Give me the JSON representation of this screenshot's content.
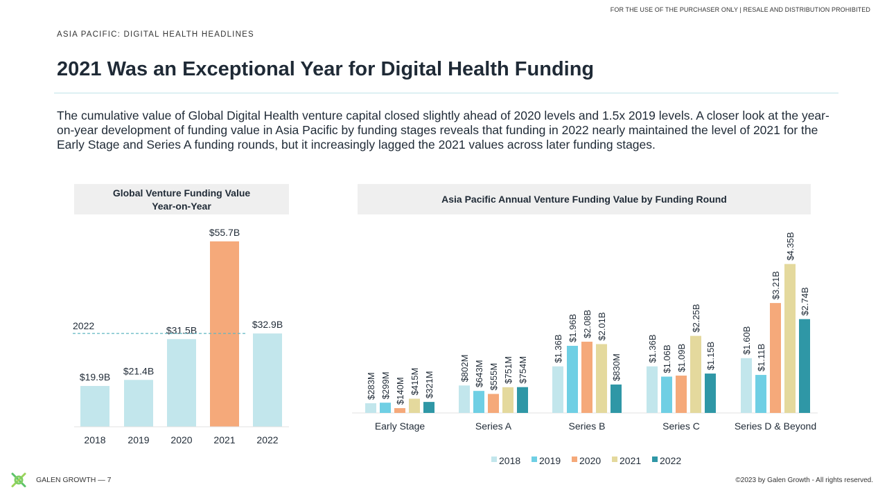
{
  "header": {
    "disclaimer": "FOR THE USE OF THE PURCHASER ONLY | RESALE AND DISTRIBUTION PROHIBITED",
    "kicker": "ASIA PACIFIC: DIGITAL HEALTH HEADLINES",
    "title": "2021 Was an Exceptional Year for Digital Health Funding"
  },
  "intro": "The cumulative value of Global Digital Health venture capital closed slightly ahead of 2020 levels and 1.5x 2019 levels. A closer look at the year-on-year development of funding value in Asia Pacific by funding stages reveals that funding in 2022 nearly maintained the level of 2021 for the Early Stage and Series A funding rounds, but it increasingly lagged the 2021 values across later funding stages.",
  "footer": {
    "brand": "GALEN GROWTH  —  7",
    "copyright": "©2023 by Galen Growth  - All rights reserved."
  },
  "chart_data": [
    {
      "type": "bar",
      "title_line1": "Global Venture Funding Value",
      "title_line2": "Year-on-Year",
      "categories": [
        "2018",
        "2019",
        "2020",
        "2021",
        "2022"
      ],
      "values": [
        19.9,
        21.4,
        31.5,
        55.7,
        32.9
      ],
      "data_labels": [
        "$19.9B",
        "$21.4B",
        "$31.5B",
        "$55.7B",
        "$32.9B"
      ],
      "colors": [
        "#c2e6ec",
        "#c2e6ec",
        "#c2e6ec",
        "#f5a97a",
        "#c2e6ec"
      ],
      "reference_line": {
        "label": "2022",
        "value": 32.9,
        "color": "#5fb6c2"
      },
      "ylim": [
        9.8,
        58
      ],
      "grid": false
    },
    {
      "type": "bar",
      "title": "Asia Pacific Annual Venture Funding Value by Funding Round",
      "categories": [
        "Early Stage",
        "Series A",
        "Series B",
        "Series C",
        "Series D & Beyond"
      ],
      "series": [
        {
          "name": "2018",
          "color": "#c2e6ec",
          "values": [
            0.283,
            0.802,
            1.36,
            1.36,
            1.6
          ],
          "labels": [
            "$283M",
            "$802M",
            "$1.36B",
            "$1.36B",
            "$1.60B"
          ]
        },
        {
          "name": "2019",
          "color": "#6fcfe4",
          "values": [
            0.299,
            0.643,
            1.96,
            1.06,
            1.11
          ],
          "labels": [
            "$299M",
            "$643M",
            "$1.96B",
            "$1.06B",
            "$1.11B"
          ]
        },
        {
          "name": "2020",
          "color": "#f5a97a",
          "values": [
            0.14,
            0.555,
            2.08,
            1.09,
            3.21
          ],
          "labels": [
            "$140M",
            "$555M",
            "$2.08B",
            "$1.09B",
            "$3.21B"
          ]
        },
        {
          "name": "2021",
          "color": "#e4d99d",
          "values": [
            0.415,
            0.751,
            2.01,
            2.25,
            4.35
          ],
          "labels": [
            "$415M",
            "$751M",
            "$2.01B",
            "$2.25B",
            "$4.35B"
          ]
        },
        {
          "name": "2022",
          "color": "#2f97a6",
          "values": [
            0.321,
            0.754,
            0.83,
            1.15,
            2.74
          ],
          "labels": [
            "$321M",
            "$754M",
            "$830M",
            "$1.15B",
            "$2.74B"
          ]
        }
      ],
      "unit": "$B",
      "ylim": [
        0,
        4.6
      ],
      "legend": "bottom",
      "grid": false
    }
  ]
}
